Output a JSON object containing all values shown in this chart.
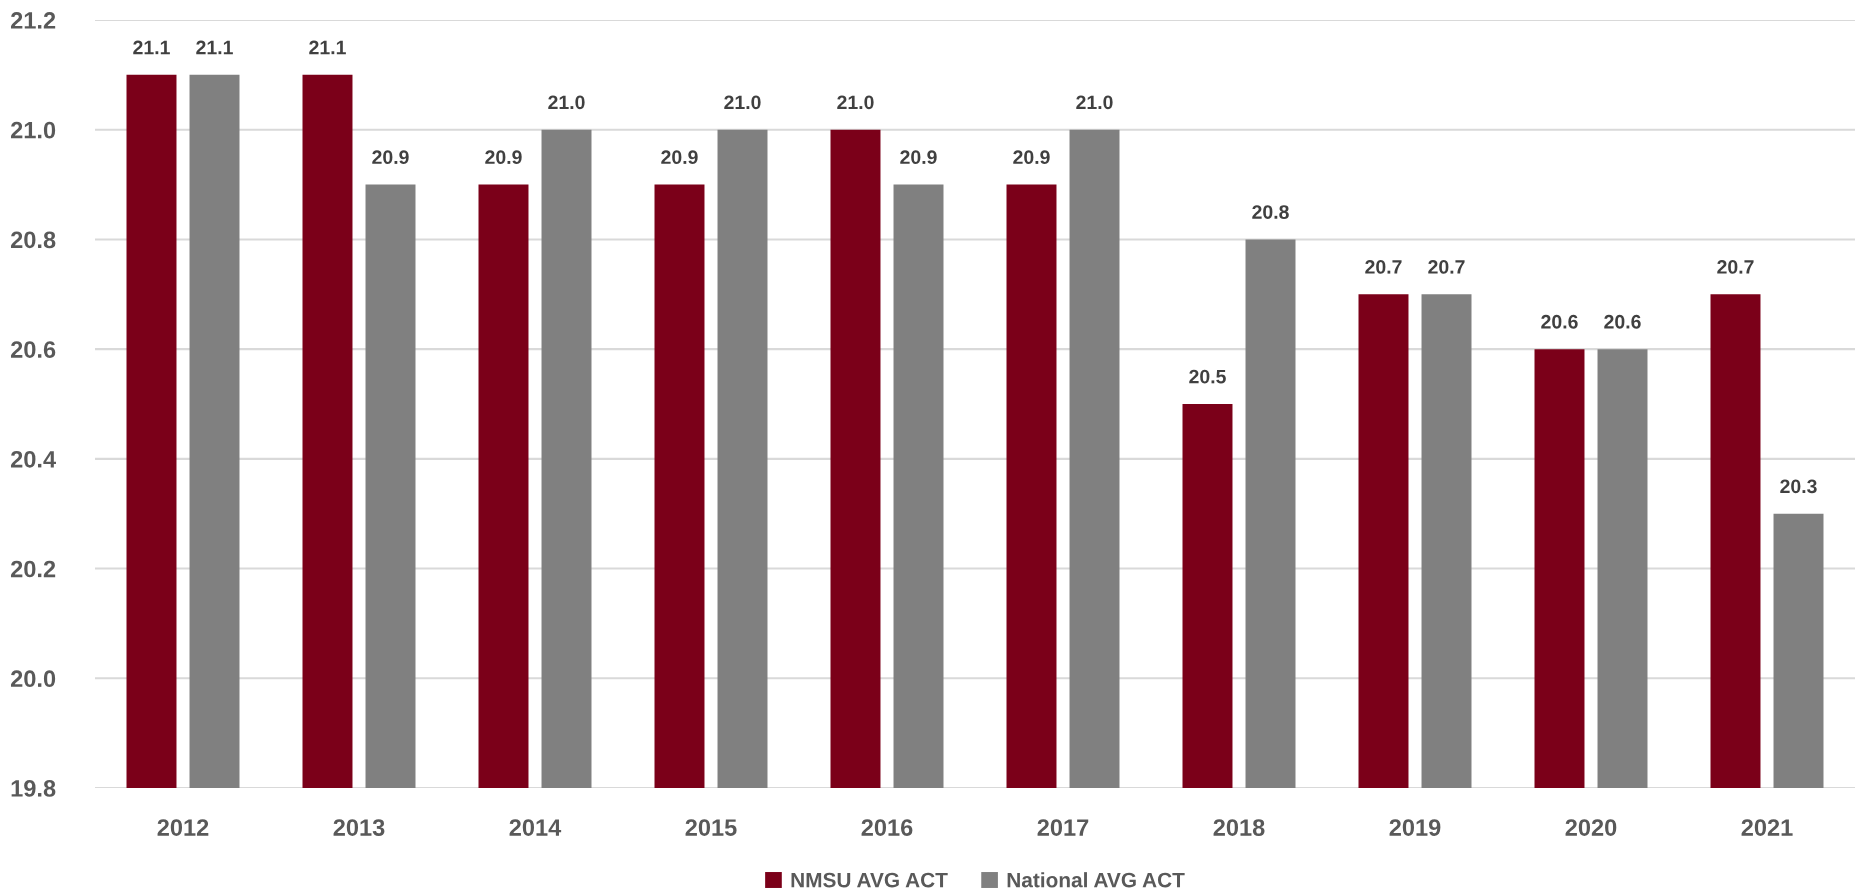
{
  "chart_data": {
    "type": "bar",
    "categories": [
      "2012",
      "2013",
      "2014",
      "2015",
      "2016",
      "2017",
      "2018",
      "2019",
      "2020",
      "2021"
    ],
    "series": [
      {
        "name": "NMSU AVG ACT",
        "color": "#7b0019",
        "values": [
          21.1,
          21.1,
          20.9,
          20.9,
          21.0,
          20.9,
          20.5,
          20.7,
          20.6,
          20.7
        ],
        "value_labels": [
          "21.1",
          "21.1",
          "20.9",
          "20.9",
          "21.0",
          "20.9",
          "20.5",
          "20.7",
          "20.6",
          "20.7"
        ]
      },
      {
        "name": "National AVG ACT",
        "color": "#808080",
        "values": [
          21.1,
          20.9,
          21.0,
          21.0,
          20.9,
          21.0,
          20.8,
          20.7,
          20.6,
          20.3
        ],
        "value_labels": [
          "21.1",
          "20.9",
          "21.0",
          "21.0",
          "20.9",
          "21.0",
          "20.8",
          "20.7",
          "20.6",
          "20.3"
        ]
      }
    ],
    "ylim": [
      19.8,
      21.2
    ],
    "yticks": [
      19.8,
      {
        "value": 20.0,
        "label": "20.0"
      },
      20.2,
      20.4,
      20.6,
      20.8,
      {
        "value": 21.0,
        "label": "21.0"
      },
      21.2
    ],
    "grid": "y",
    "legend": "bottom"
  }
}
